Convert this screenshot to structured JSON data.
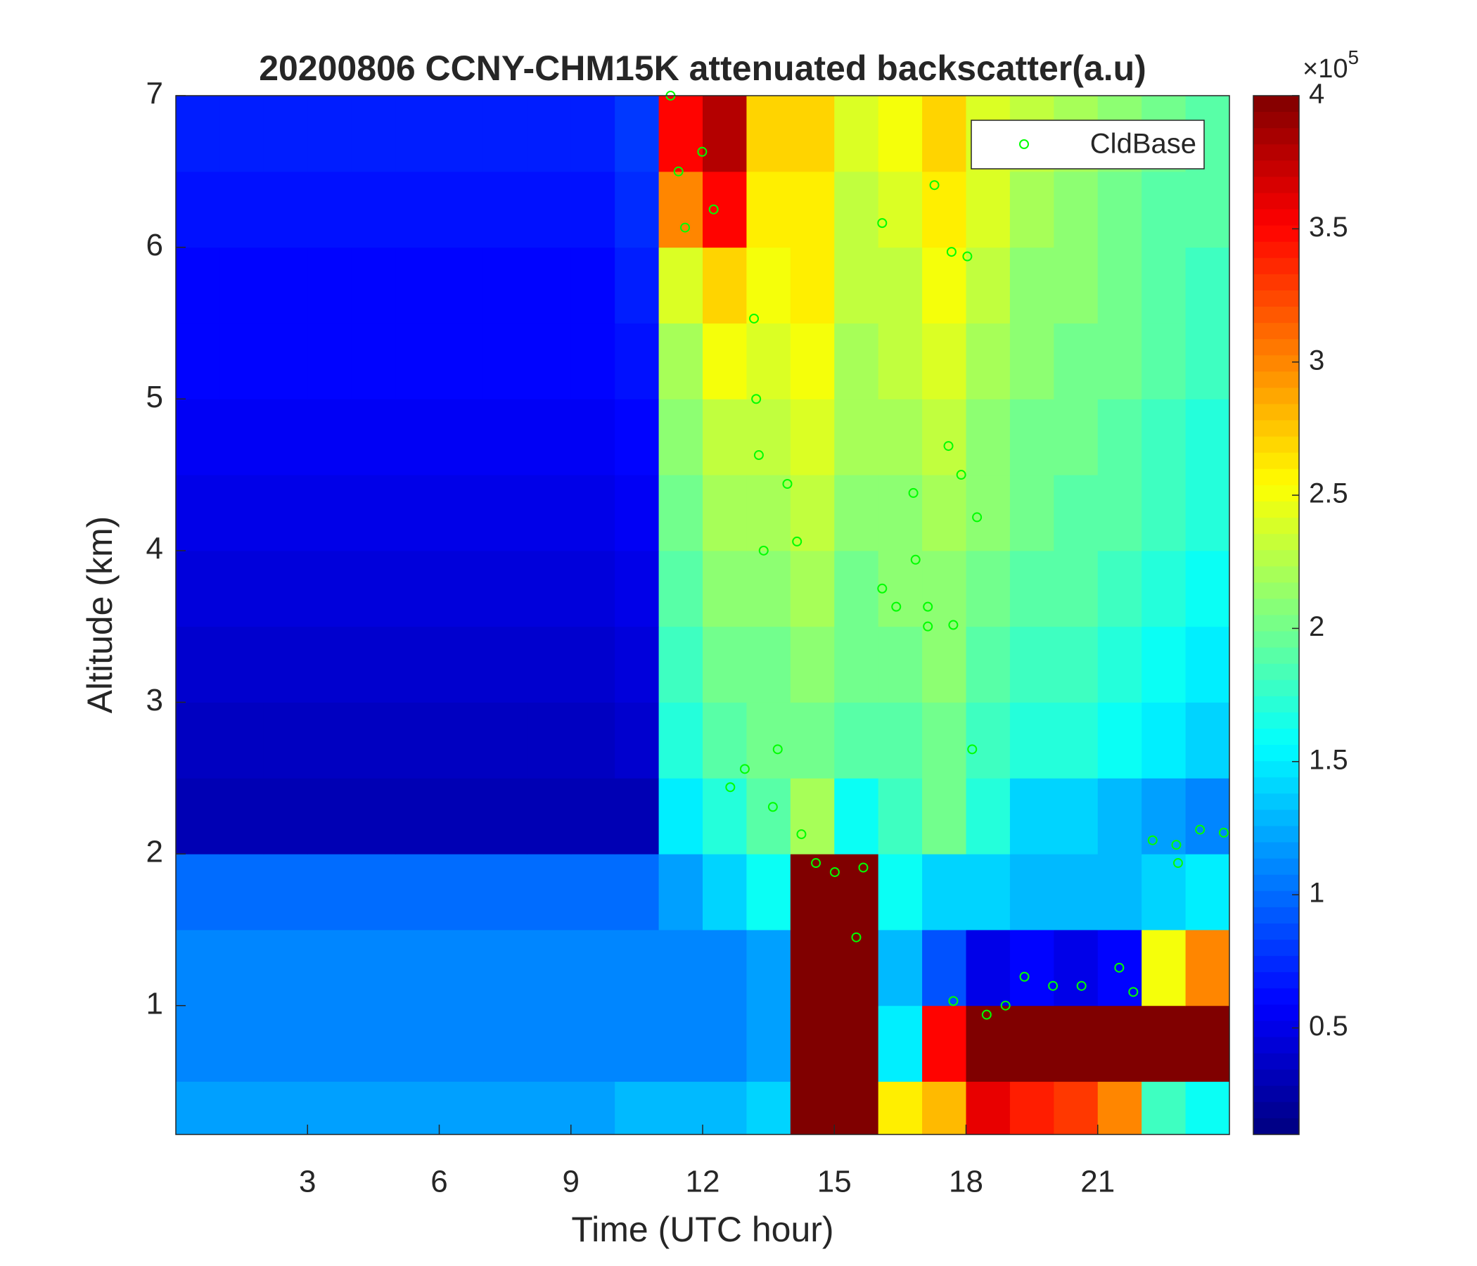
{
  "chart_data": {
    "type": "heatmap",
    "title": "20200806 CCNY-CHM15K attenuated backscatter(a.u)",
    "xlabel": "Time (UTC hour)",
    "ylabel": "Altitude (km)",
    "xlim": [
      0,
      24
    ],
    "ylim": [
      0.15,
      7
    ],
    "xticks": [
      3,
      6,
      9,
      12,
      15,
      18,
      21
    ],
    "yticks": [
      1,
      2,
      3,
      4,
      5,
      6,
      7
    ],
    "colormap": "jet",
    "clim": [
      0.1,
      4
    ],
    "cticks": [
      0.5,
      1,
      1.5,
      2,
      2.5,
      3,
      3.5,
      4
    ],
    "colorbar_multiplier": {
      "base": "×10",
      "exponent": "5"
    },
    "x_edges": [
      0,
      1,
      2,
      3,
      4,
      5,
      6,
      7,
      8,
      9,
      10,
      11,
      12,
      13,
      14,
      15,
      16,
      17,
      18,
      19,
      20,
      21,
      22,
      23,
      24
    ],
    "y_edges": [
      0.15,
      0.5,
      1,
      1.5,
      2,
      2.5,
      3,
      3.5,
      4,
      4.5,
      5,
      5.5,
      6,
      6.5,
      7
    ],
    "z": [
      [
        1.2,
        1.2,
        1.2,
        1.2,
        1.2,
        1.2,
        1.2,
        1.2,
        1.2,
        1.2,
        1.3,
        1.3,
        1.3,
        1.4,
        4,
        4,
        2.6,
        2.8,
        3.6,
        3.4,
        3.3,
        3.0,
        1.8,
        1.6
      ],
      [
        1.1,
        1.1,
        1.1,
        1.1,
        1.1,
        1.1,
        1.1,
        1.1,
        1.1,
        1.1,
        1.1,
        1.1,
        1.1,
        1.2,
        4,
        4,
        1.5,
        3.5,
        4,
        4,
        4,
        4,
        4,
        4
      ],
      [
        1.1,
        1.1,
        1.1,
        1.1,
        1.1,
        1.1,
        1.1,
        1.1,
        1.1,
        1.1,
        1.1,
        1.1,
        1.1,
        1.2,
        4,
        4,
        1.3,
        0.9,
        0.5,
        0.6,
        0.5,
        0.6,
        2.5,
        3.0
      ],
      [
        1.0,
        1.0,
        1.0,
        1.0,
        1.0,
        1.0,
        1.0,
        1.0,
        1.0,
        1.0,
        1.0,
        1.2,
        1.4,
        1.6,
        4,
        4,
        1.6,
        1.4,
        1.4,
        1.3,
        1.3,
        1.3,
        1.4,
        1.5
      ],
      [
        0.3,
        0.3,
        0.3,
        0.3,
        0.3,
        0.3,
        0.3,
        0.3,
        0.3,
        0.3,
        0.3,
        1.5,
        1.7,
        1.9,
        2.2,
        1.6,
        1.8,
        2.0,
        1.7,
        1.4,
        1.4,
        1.3,
        1.2,
        1.1
      ],
      [
        0.35,
        0.35,
        0.35,
        0.35,
        0.35,
        0.35,
        0.35,
        0.35,
        0.35,
        0.35,
        0.4,
        1.7,
        1.9,
        2.0,
        2.0,
        1.9,
        1.9,
        2.0,
        1.8,
        1.7,
        1.7,
        1.6,
        1.5,
        1.4
      ],
      [
        0.4,
        0.4,
        0.4,
        0.4,
        0.4,
        0.4,
        0.4,
        0.4,
        0.4,
        0.4,
        0.45,
        1.8,
        2.0,
        2.0,
        2.1,
        2.0,
        2.0,
        2.1,
        1.9,
        1.8,
        1.8,
        1.7,
        1.6,
        1.5
      ],
      [
        0.45,
        0.45,
        0.45,
        0.45,
        0.45,
        0.45,
        0.45,
        0.45,
        0.45,
        0.45,
        0.5,
        1.9,
        2.1,
        2.1,
        2.2,
        2.0,
        2.1,
        2.1,
        2.0,
        1.9,
        1.9,
        1.8,
        1.7,
        1.6
      ],
      [
        0.5,
        0.5,
        0.5,
        0.5,
        0.5,
        0.5,
        0.5,
        0.5,
        0.5,
        0.5,
        0.55,
        2.0,
        2.2,
        2.2,
        2.3,
        2.1,
        2.1,
        2.2,
        2.1,
        2.0,
        1.9,
        1.9,
        1.8,
        1.7
      ],
      [
        0.55,
        0.55,
        0.55,
        0.55,
        0.55,
        0.55,
        0.55,
        0.55,
        0.55,
        0.55,
        0.6,
        2.1,
        2.3,
        2.3,
        2.4,
        2.2,
        2.2,
        2.3,
        2.1,
        2.0,
        2.0,
        1.9,
        1.8,
        1.7
      ],
      [
        0.6,
        0.6,
        0.6,
        0.6,
        0.6,
        0.6,
        0.6,
        0.6,
        0.6,
        0.6,
        0.65,
        2.2,
        2.5,
        2.4,
        2.5,
        2.2,
        2.3,
        2.4,
        2.2,
        2.1,
        2.0,
        2.0,
        1.9,
        1.8
      ],
      [
        0.6,
        0.6,
        0.6,
        0.6,
        0.6,
        0.6,
        0.6,
        0.6,
        0.6,
        0.6,
        0.7,
        2.4,
        2.7,
        2.5,
        2.6,
        2.3,
        2.3,
        2.5,
        2.3,
        2.1,
        2.1,
        2.0,
        1.9,
        1.8
      ],
      [
        0.65,
        0.65,
        0.65,
        0.65,
        0.65,
        0.65,
        0.65,
        0.65,
        0.65,
        0.65,
        0.75,
        3.0,
        3.5,
        2.6,
        2.6,
        2.3,
        2.4,
        2.6,
        2.4,
        2.2,
        2.1,
        2.0,
        1.9,
        1.9
      ],
      [
        0.7,
        0.7,
        0.7,
        0.7,
        0.7,
        0.7,
        0.7,
        0.7,
        0.7,
        0.7,
        0.8,
        3.5,
        3.8,
        2.7,
        2.7,
        2.4,
        2.5,
        2.7,
        2.4,
        2.3,
        2.2,
        2.1,
        2.0,
        1.9
      ]
    ],
    "series": [
      {
        "name": "CldBase",
        "color": "#00ff00",
        "x": [
          11.27,
          11.45,
          11.6,
          11.99,
          12.25,
          13.17,
          13.22,
          13.28,
          13.39,
          13.93,
          14.15,
          12.63,
          12.96,
          13.71,
          13.6,
          14.25,
          14.58,
          15.01,
          15.66,
          15.5,
          16.09,
          16.41,
          16.85,
          17.13,
          16.09,
          17.28,
          17.67,
          18.03,
          17.6,
          17.89,
          18.25,
          16.8,
          17.71,
          18.47,
          18.9,
          19.33,
          19.98,
          20.63,
          21.49,
          21.81,
          22.25,
          22.79,
          23.33,
          23.87,
          22.83,
          18.14,
          17.13,
          17.71
        ],
        "values": [
          7.0,
          6.5,
          6.13,
          6.63,
          6.25,
          5.53,
          5.0,
          4.63,
          4.0,
          4.44,
          4.06,
          2.44,
          2.56,
          2.69,
          2.31,
          2.13,
          1.94,
          1.88,
          1.91,
          1.45,
          3.75,
          3.63,
          3.94,
          3.63,
          6.16,
          6.41,
          5.97,
          5.94,
          4.69,
          4.5,
          4.22,
          4.38,
          1.03,
          0.94,
          1.0,
          1.19,
          1.13,
          1.13,
          1.25,
          1.09,
          2.09,
          2.06,
          2.16,
          2.14,
          1.94,
          2.69,
          3.5,
          3.51
        ]
      }
    ],
    "legend": "upper right"
  }
}
